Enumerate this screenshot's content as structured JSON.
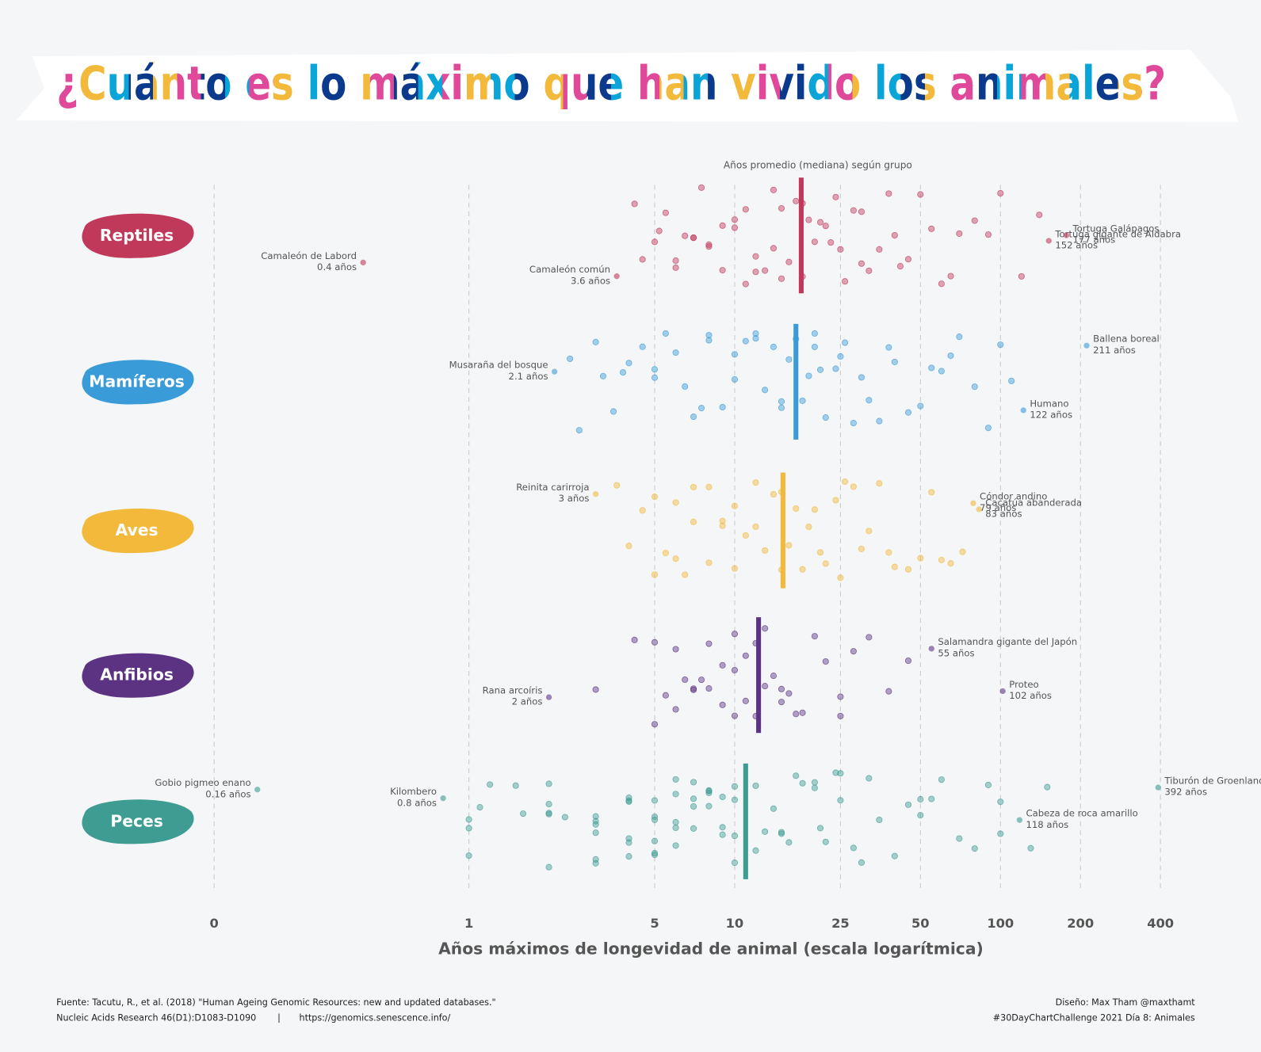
{
  "chart_data": {
    "type": "strip",
    "title": "¿Cuánto es lo máximo que han vivido los animales?",
    "subtitle": "Años promedio (mediana) según grupo",
    "x_label": "Años máximos de longevidad de animal (escala logarítmica)",
    "log_x": true,
    "grid": true,
    "xlim": [
      0.1,
      450
    ],
    "xticks": [
      {
        "value": 0.11,
        "label": "0"
      },
      1,
      5,
      10,
      25,
      50,
      100,
      200,
      400
    ],
    "series": [
      {
        "name": "Reptiles",
        "color": "#c0395a",
        "median": 17.8,
        "values": [
          4.2,
          4.5,
          5,
          5.2,
          5.5,
          6,
          6,
          6.5,
          7,
          7,
          7.5,
          8,
          8,
          9,
          9,
          10,
          10,
          11,
          11,
          12,
          12,
          13,
          14,
          14,
          15,
          15,
          16,
          17,
          18,
          18,
          19,
          20,
          21,
          22,
          23,
          24,
          25,
          26,
          28,
          30,
          30,
          32,
          35,
          38,
          40,
          42,
          45,
          50,
          55,
          60,
          65,
          70,
          80,
          90,
          100,
          120,
          140
        ],
        "highlights": [
          {
            "name": "Camaleón de Labord",
            "value": 0.4,
            "label": "0.4 años"
          },
          {
            "name": "Camaleón común",
            "value": 3.6,
            "label": "3.6 años"
          },
          {
            "name": "Tortuga gigante de Aldabra",
            "value": 152,
            "label": "152 años"
          },
          {
            "name": "Tortuga Galápagos",
            "value": 177,
            "label": "177 años"
          }
        ]
      },
      {
        "name": "Mamíferos",
        "color": "#3a9bd9",
        "median": 17,
        "values": [
          2.4,
          2.6,
          3,
          3.2,
          3.5,
          3.8,
          4,
          4.5,
          5,
          5,
          5.5,
          6,
          6.5,
          7,
          7.5,
          8,
          8,
          9,
          10,
          10,
          11,
          12,
          12,
          13,
          14,
          15,
          15,
          16,
          17,
          18,
          19,
          20,
          20,
          21,
          22,
          24,
          25,
          26,
          28,
          30,
          32,
          35,
          38,
          40,
          45,
          50,
          55,
          60,
          65,
          70,
          80,
          90,
          100,
          110
        ],
        "highlights": [
          {
            "name": "Musaraña del bosque",
            "value": 2.1,
            "label": "2.1 años"
          },
          {
            "name": "Humano",
            "value": 122,
            "label": "122 años"
          },
          {
            "name": "Ballena boreal",
            "value": 211,
            "label": "211 años"
          }
        ]
      },
      {
        "name": "Aves",
        "color": "#f2b93b",
        "median": 15.2,
        "values": [
          3.6,
          4,
          4.5,
          5,
          5,
          5.5,
          6,
          6,
          6.5,
          7,
          7,
          8,
          8,
          9,
          9,
          10,
          10,
          11,
          12,
          12,
          13,
          14,
          15,
          15,
          16,
          17,
          18,
          19,
          20,
          21,
          22,
          24,
          25,
          26,
          28,
          30,
          32,
          35,
          38,
          40,
          45,
          50,
          55,
          60,
          65,
          72
        ],
        "highlights": [
          {
            "name": "Reinita carirroja",
            "value": 3,
            "label": "3 años"
          },
          {
            "name": "Cóndor andino",
            "value": 79,
            "label": "79 años"
          },
          {
            "name": "Cacatúa abanderada",
            "value": 83,
            "label": "83 años"
          }
        ]
      },
      {
        "name": "Anfibios",
        "color": "#5c3382",
        "median": 12.3,
        "values": [
          3,
          4.2,
          5,
          5,
          5.5,
          6,
          6,
          6.5,
          7,
          7,
          7.5,
          8,
          8,
          9,
          9,
          10,
          10,
          10,
          11,
          11,
          12,
          12,
          13,
          13,
          14,
          15,
          15,
          16,
          17,
          18,
          20,
          22,
          25,
          25,
          28,
          32,
          38,
          45
        ],
        "highlights": [
          {
            "name": "Rana arcoíris",
            "value": 2,
            "label": "2 años"
          },
          {
            "name": "Salamandra gigante del Japón",
            "value": 55,
            "label": "55 años"
          },
          {
            "name": "Proteo",
            "value": 102,
            "label": "102 años"
          }
        ]
      },
      {
        "name": "Peces",
        "color": "#3e9c93",
        "median": 11,
        "values": [
          1,
          1,
          1,
          1.1,
          1.2,
          1.5,
          1.6,
          2,
          2,
          2,
          2,
          2,
          2.3,
          3,
          3,
          3,
          3,
          3,
          3,
          4,
          4,
          4,
          4,
          4,
          4,
          5,
          5,
          5,
          5,
          5,
          5,
          6,
          6,
          6,
          6,
          6,
          7,
          7,
          7,
          7,
          8,
          8,
          8,
          8,
          9,
          9,
          9,
          10,
          10,
          10,
          10,
          12,
          12,
          13,
          14,
          15,
          15,
          16,
          17,
          18,
          20,
          20,
          21,
          22,
          24,
          25,
          25,
          28,
          30,
          32,
          35,
          40,
          45,
          50,
          50,
          55,
          60,
          70,
          80,
          90,
          100,
          100,
          130,
          150
        ],
        "highlights": [
          {
            "name": "Gobio pigmeo enano",
            "value": 0.16,
            "label": "0.16 años"
          },
          {
            "name": "Kilombero",
            "value": 0.8,
            "label": "0.8 años"
          },
          {
            "name": "Tiburón de Groenlandia",
            "value": 392,
            "label": "392 años"
          },
          {
            "name": "Cabeza de roca amarillo",
            "value": 118,
            "label": "118 años"
          }
        ]
      }
    ],
    "footer_left": [
      "Fuente: Tacutu, R., et al. (2018) \"Human Ageing Genomic Resources: new and updated databases.\"",
      "Nucleic Acids Research 46(D1):D1083-D1090",
      "|",
      "https://genomics.senescence.info/"
    ],
    "footer_right": [
      "Diseño: Max Tham @maxthamt",
      "#30DayChartChallenge 2021 Día 8: Animales"
    ]
  }
}
